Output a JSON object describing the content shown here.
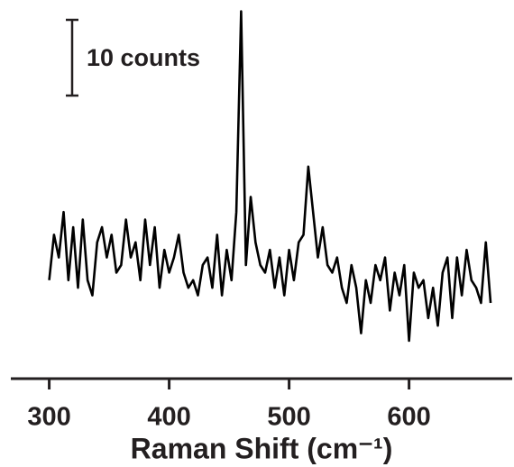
{
  "chart_data": {
    "type": "line",
    "x_label": "Raman Shift (cm⁻¹)",
    "scale_bar": {
      "label": "10 counts",
      "value": 10
    },
    "x": [
      300,
      304,
      308,
      312,
      316,
      320,
      324,
      328,
      332,
      336,
      340,
      344,
      348,
      352,
      356,
      360,
      364,
      368,
      372,
      376,
      380,
      384,
      388,
      392,
      396,
      400,
      404,
      408,
      412,
      416,
      420,
      424,
      428,
      432,
      436,
      440,
      444,
      448,
      452,
      456,
      460,
      464,
      468,
      472,
      476,
      480,
      484,
      488,
      492,
      496,
      500,
      504,
      508,
      512,
      516,
      520,
      524,
      528,
      532,
      536,
      540,
      544,
      548,
      552,
      556,
      560,
      564,
      568,
      572,
      576,
      580,
      584,
      588,
      592,
      596,
      600,
      604,
      608,
      612,
      616,
      620,
      624,
      628,
      632,
      636,
      640,
      644,
      648,
      652,
      656,
      660,
      664,
      668
    ],
    "values": [
      13,
      19,
      16,
      22,
      13,
      20,
      12,
      21,
      13,
      11,
      18,
      20,
      16,
      19,
      14,
      15,
      21,
      16,
      18,
      13,
      21,
      15,
      20,
      12,
      17,
      14,
      16,
      19,
      14,
      12,
      13,
      11,
      15,
      16,
      12,
      19,
      11,
      17,
      13,
      22,
      48.5,
      15,
      24,
      18,
      15,
      14,
      17,
      12,
      16,
      11,
      17,
      13,
      18,
      19,
      28,
      22,
      16,
      20,
      15,
      14,
      16,
      12,
      10,
      15,
      12,
      6,
      13,
      10,
      15,
      13,
      16,
      9,
      14,
      11,
      15,
      5,
      14,
      12,
      13,
      8,
      12,
      7,
      14,
      16,
      8,
      16,
      11,
      17,
      13,
      12,
      10,
      18,
      10
    ],
    "color": "#000000",
    "xlim": [
      268,
      686
    ],
    "xticks": [
      300,
      400,
      500,
      600
    ],
    "ylim": [
      0,
      50
    ]
  }
}
